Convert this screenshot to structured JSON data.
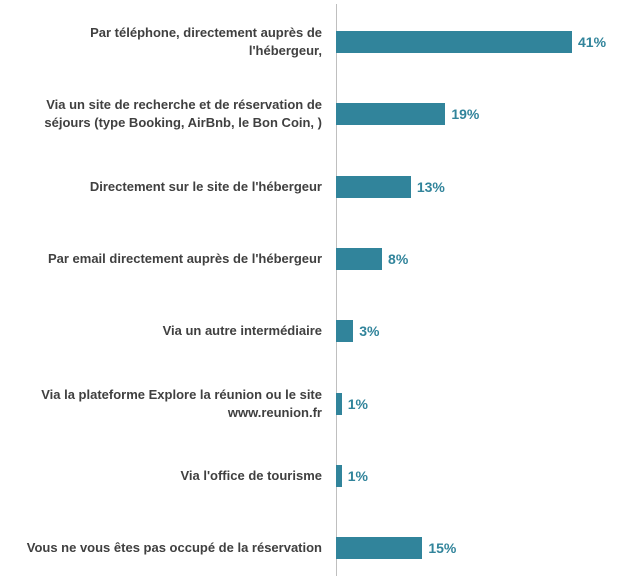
{
  "chart_data": {
    "type": "bar",
    "orientation": "horizontal",
    "categories": [
      "Par téléphone, directement auprès de l'hébergeur,",
      "Via un site de recherche et de réservation de séjours (type Booking, AirBnb, le Bon Coin, )",
      "Directement sur le site de l'hébergeur",
      "Par email directement auprès de l'hébergeur",
      "Via un autre intermédiaire",
      "Via la plateforme Explore la réunion ou le site www.reunion.fr",
      "Via l'office de tourisme",
      "Vous ne vous êtes pas occupé de la réservation"
    ],
    "values": [
      41,
      19,
      13,
      8,
      3,
      1,
      1,
      15
    ],
    "value_labels": [
      "41%",
      "19%",
      "13%",
      "8%",
      "3%",
      "1%",
      "1%",
      "15%"
    ],
    "color": "#31849b"
  }
}
